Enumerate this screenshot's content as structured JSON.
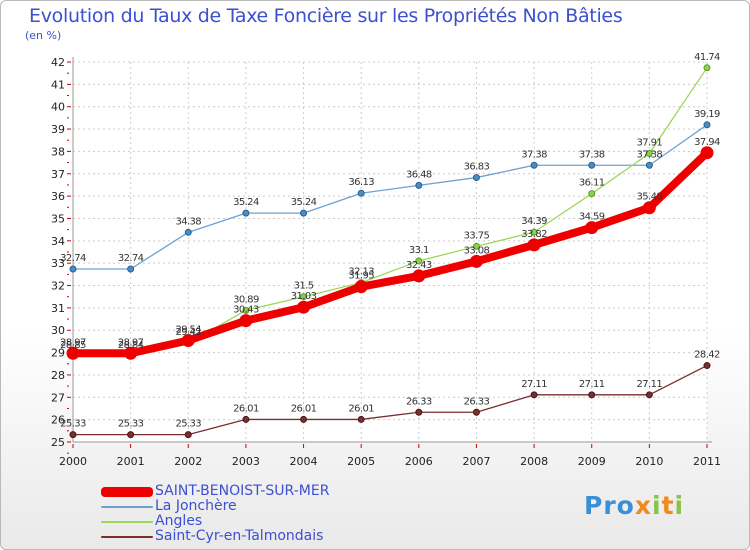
{
  "chart_data": {
    "type": "line",
    "title": "Evolution du Taux de Taxe Foncière sur les Propriétés Non Bâties",
    "ylabel": "(en %)",
    "x": [
      "2000",
      "2001",
      "2002",
      "2003",
      "2004",
      "2005",
      "2006",
      "2007",
      "2008",
      "2009",
      "2010",
      "2011"
    ],
    "ylim": [
      25,
      42
    ],
    "yticks": [
      25,
      26,
      27,
      28,
      29,
      30,
      31,
      32,
      33,
      34,
      35,
      36,
      37,
      38,
      39,
      40,
      41,
      42
    ],
    "grid": true,
    "legend_position": "bottom-left",
    "series": [
      {
        "name": "SAINT-BENOIST-SUR-MER",
        "color": "#ee0000",
        "values": [
          28.97,
          28.97,
          29.54,
          30.43,
          31.03,
          31.95,
          32.43,
          33.08,
          33.82,
          34.59,
          35.48,
          37.94
        ],
        "labels": [
          "28.97",
          "28.97",
          "29.54",
          "30.43",
          "31.03",
          "31.95",
          "32.43",
          "33.08",
          "33.82",
          "34.59",
          "35.48",
          "37.94"
        ]
      },
      {
        "name": "La Jonchère",
        "color": "#6fa0d0",
        "values": [
          32.74,
          32.74,
          34.38,
          35.24,
          35.24,
          36.13,
          36.48,
          36.83,
          37.38,
          37.38,
          37.38,
          39.19
        ],
        "labels": [
          "32.74",
          "32.74",
          "34.38",
          "35.24",
          "35.24",
          "36.13",
          "36.48",
          "36.83",
          "37.38",
          "37.38",
          "37.38",
          "39.19"
        ]
      },
      {
        "name": "Angles",
        "color": "#9ed65a",
        "values": [
          28.85,
          28.84,
          29.42,
          30.89,
          31.5,
          32.13,
          33.1,
          33.75,
          34.39,
          36.11,
          37.91,
          41.74
        ],
        "labels": [
          "28.85",
          "28.84",
          "29.42",
          "30.89",
          "31.5",
          "32.13",
          "33.1",
          "33.75",
          "34.39",
          "36.11",
          "37.91",
          "41.74"
        ]
      },
      {
        "name": "Saint-Cyr-en-Talmondais",
        "color": "#7a2e2e",
        "values": [
          25.33,
          25.33,
          25.33,
          26.01,
          26.01,
          26.01,
          26.33,
          26.33,
          27.11,
          27.11,
          27.11,
          28.42
        ],
        "labels": [
          "25.33",
          "25.33",
          "25.33",
          "26.01",
          "26.01",
          "26.01",
          "26.33",
          "26.33",
          "27.11",
          "27.11",
          "27.11",
          "28.42"
        ]
      }
    ]
  },
  "logo": {
    "text": "Proxiti",
    "letters": [
      "P",
      "r",
      "o",
      "x",
      "i",
      "t",
      "i"
    ],
    "colors": [
      "#3a8fd6",
      "#3a8fd6",
      "#3a8fd6",
      "#f08a1c",
      "#8bc34a",
      "#f08a1c",
      "#8bc34a"
    ]
  }
}
